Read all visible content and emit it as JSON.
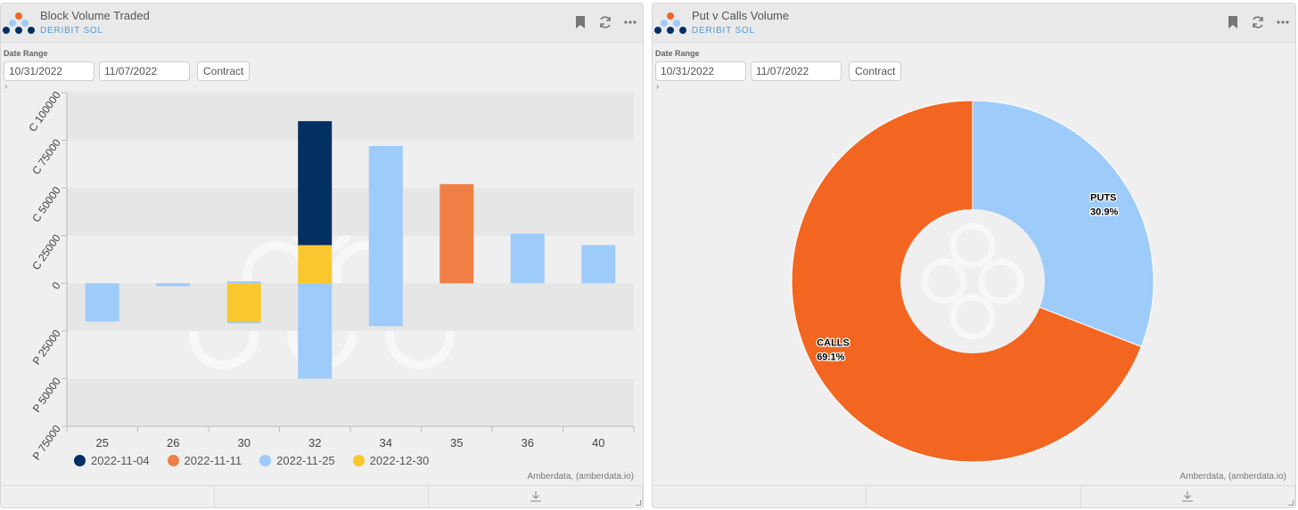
{
  "colors": {
    "navy": "#033063",
    "orange": "#f07f46",
    "light_blue": "#9dcbfa",
    "yellow": "#fac72e",
    "calls_orange": "#f26621",
    "subtitle_blue": "#4a9be0"
  },
  "left_panel": {
    "title": "Block Volume Traded",
    "subtitle": "DERIBIT SOL",
    "date_label": "Date Range",
    "start_date": "10/31/2022",
    "end_date": "11/07/2022",
    "contract_label": "Contract",
    "expander": "›",
    "credit": "Amberdata, (amberdata.io)",
    "icons": [
      "bookmark-icon",
      "refresh-icon",
      "more-icon",
      "download-icon"
    ]
  },
  "right_panel": {
    "title": "Put v Calls Volume",
    "subtitle": "DERIBIT SOL",
    "date_label": "Date Range",
    "start_date": "10/31/2022",
    "end_date": "11/07/2022",
    "contract_label": "Contract",
    "expander": "›",
    "credit": "Amberdata, (amberdata.io)",
    "icons": [
      "bookmark-icon",
      "refresh-icon",
      "more-icon",
      "download-icon"
    ]
  },
  "chart_data": [
    {
      "type": "bar",
      "stacked": true,
      "categories": [
        "25",
        "26",
        "30",
        "32",
        "34",
        "35",
        "36",
        "40"
      ],
      "y_ticks": [
        "C 100000",
        "C 75000",
        "C 50000",
        "C 25000",
        "0",
        "P 25000",
        "P 50000",
        "P 75000"
      ],
      "y_tick_values": [
        100000,
        75000,
        50000,
        25000,
        0,
        -25000,
        -50000,
        -75000
      ],
      "ylim": [
        -75000,
        100000
      ],
      "grid": "alternating bands",
      "legend_position": "bottom",
      "series": [
        {
          "name": "2022-11-04",
          "color": "#033063",
          "values": [
            0,
            0,
            0,
            65000,
            0,
            0,
            0,
            0
          ]
        },
        {
          "name": "2022-11-11",
          "color": "#f07f46",
          "values": [
            0,
            0,
            0,
            0,
            0,
            52000,
            0,
            0
          ]
        },
        {
          "name": "2022-11-25",
          "color": "#9dcbfa",
          "values": [
            -20000,
            -1500,
            -600,
            -50000,
            72000,
            0,
            26000,
            20000
          ],
          "extra": [
            {
              "category": "30",
              "value": 1000
            },
            {
              "category": "34",
              "value": -22500
            }
          ]
        },
        {
          "name": "2022-12-30",
          "color": "#fac72e",
          "values": [
            0,
            0,
            -20400,
            20000,
            0,
            0,
            0,
            0
          ]
        }
      ]
    },
    {
      "type": "pie",
      "donut": true,
      "slices": [
        {
          "label": "PUTS",
          "value": 30.9,
          "display": "30.9%",
          "color": "#9dcbfa"
        },
        {
          "label": "CALLS",
          "value": 69.1,
          "display": "69.1%",
          "color": "#f26621"
        }
      ]
    }
  ]
}
